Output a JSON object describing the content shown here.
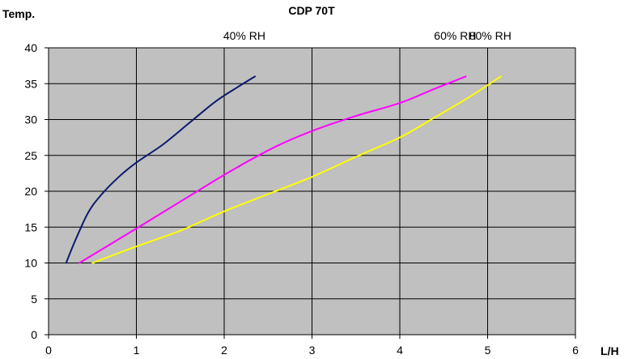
{
  "chart_data": {
    "type": "line",
    "title": "CDP 70T",
    "xlabel": "L/H",
    "ylabel": "Temp.",
    "xlim": [
      0,
      6
    ],
    "ylim": [
      0,
      40
    ],
    "x_ticks": [
      0,
      1,
      2,
      3,
      4,
      5,
      6
    ],
    "y_ticks": [
      0,
      5,
      10,
      15,
      20,
      25,
      30,
      35,
      40
    ],
    "grid": true,
    "plot_background": "#c0c0c0",
    "series": [
      {
        "name": "40% RH",
        "color": "#0a1a6e",
        "points": [
          [
            0.2,
            10
          ],
          [
            0.3,
            13
          ],
          [
            0.45,
            17
          ],
          [
            0.6,
            19.5
          ],
          [
            0.8,
            22
          ],
          [
            1.0,
            24
          ],
          [
            1.3,
            26.5
          ],
          [
            1.6,
            29.5
          ],
          [
            1.9,
            32.5
          ],
          [
            2.15,
            34.5
          ],
          [
            2.35,
            36
          ]
        ]
      },
      {
        "name": "60% RH",
        "color": "#ff00ff",
        "points": [
          [
            0.35,
            10
          ],
          [
            1.0,
            14.8
          ],
          [
            1.6,
            19.3
          ],
          [
            2.1,
            23
          ],
          [
            2.6,
            26.3
          ],
          [
            3.0,
            28.4
          ],
          [
            3.5,
            30.5
          ],
          [
            4.0,
            32.3
          ],
          [
            4.4,
            34.3
          ],
          [
            4.75,
            36
          ]
        ]
      },
      {
        "name": "80% RH",
        "color": "#ffff00",
        "points": [
          [
            0.5,
            10
          ],
          [
            1.0,
            12.3
          ],
          [
            1.5,
            14.5
          ],
          [
            2.0,
            17.2
          ],
          [
            2.5,
            19.6
          ],
          [
            3.0,
            22
          ],
          [
            3.5,
            24.8
          ],
          [
            4.0,
            27.5
          ],
          [
            4.4,
            30.3
          ],
          [
            4.8,
            33.2
          ],
          [
            5.15,
            36
          ]
        ]
      }
    ]
  }
}
